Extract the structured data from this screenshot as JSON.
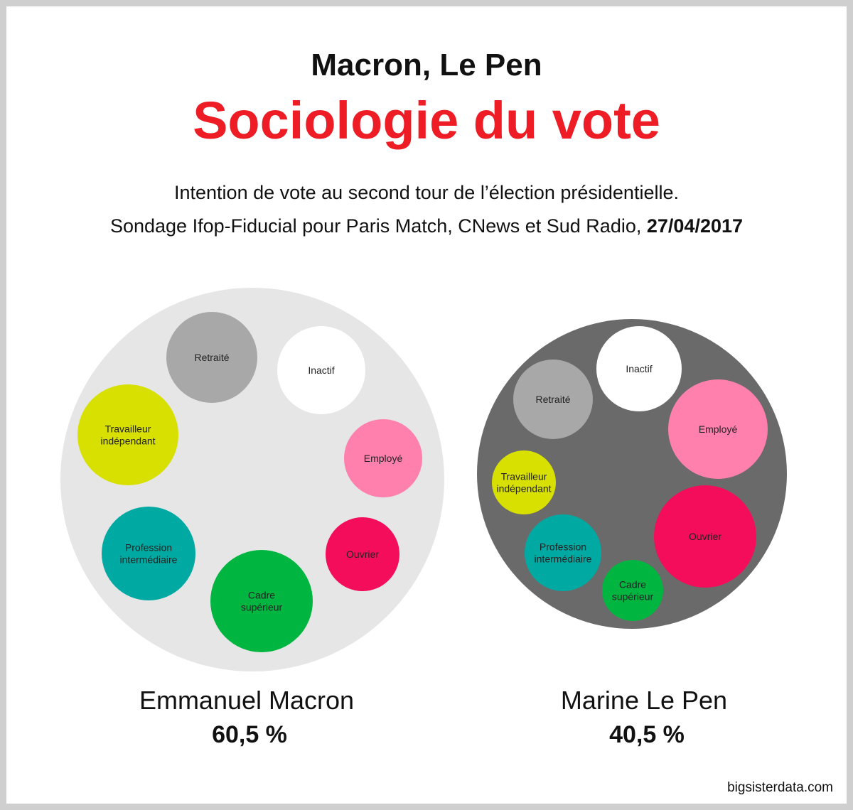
{
  "header": {
    "title": "Macron, Le Pen",
    "subtitle": "Sociologie du vote",
    "description_line1": "Intention de vote au second tour de l’élection présidentielle.",
    "description_line2": "Sondage Ifop-Fiducial pour Paris Match, CNews et Sud Radio,",
    "date": "27/04/2017"
  },
  "footer": {
    "credit": "bigsisterdata.com"
  },
  "colors": {
    "subtitle": "#ee1c25",
    "macron_bg": "#e6e6e6",
    "lepen_bg": "#6a6a6a",
    "Retraité": "#a8a8a8",
    "Inactif": "#ffffff",
    "Employé": "#ff80ad",
    "Ouvrier": "#f40d5a",
    "Cadre supérieur": "#00b540",
    "Profession intermédiaire": "#00a9a1",
    "Travailleur indépendant": "#d7e000"
  },
  "chart_data": [
    {
      "type": "bubble",
      "candidate": "Emmanuel Macron",
      "result": "60,5 %",
      "categories": [
        {
          "label": "Retraité",
          "lines": [
            "Retraité"
          ]
        },
        {
          "label": "Inactif",
          "lines": [
            "Inactif"
          ]
        },
        {
          "label": "Employé",
          "lines": [
            "Employé"
          ]
        },
        {
          "label": "Ouvrier",
          "lines": [
            "Ouvrier"
          ]
        },
        {
          "label": "Cadre supérieur",
          "lines": [
            "Cadre",
            "supérieur"
          ]
        },
        {
          "label": "Profession intermédiaire",
          "lines": [
            "Profession",
            "intermédiaire"
          ]
        },
        {
          "label": "Travailleur indépendant",
          "lines": [
            "Travailleur",
            "indépendant"
          ]
        }
      ]
    },
    {
      "type": "bubble",
      "candidate": "Marine Le Pen",
      "result": "40,5 %",
      "categories": [
        {
          "label": "Inactif",
          "lines": [
            "Inactif"
          ]
        },
        {
          "label": "Retraité",
          "lines": [
            "Retraité"
          ]
        },
        {
          "label": "Employé",
          "lines": [
            "Employé"
          ]
        },
        {
          "label": "Travailleur indépendant",
          "lines": [
            "Travailleur",
            "indépendant"
          ]
        },
        {
          "label": "Ouvrier",
          "lines": [
            "Ouvrier"
          ]
        },
        {
          "label": "Profession intermédiaire",
          "lines": [
            "Profession",
            "intermédiaire"
          ]
        },
        {
          "label": "Cadre supérieur",
          "lines": [
            "Cadre",
            "supérieur"
          ]
        }
      ]
    }
  ]
}
